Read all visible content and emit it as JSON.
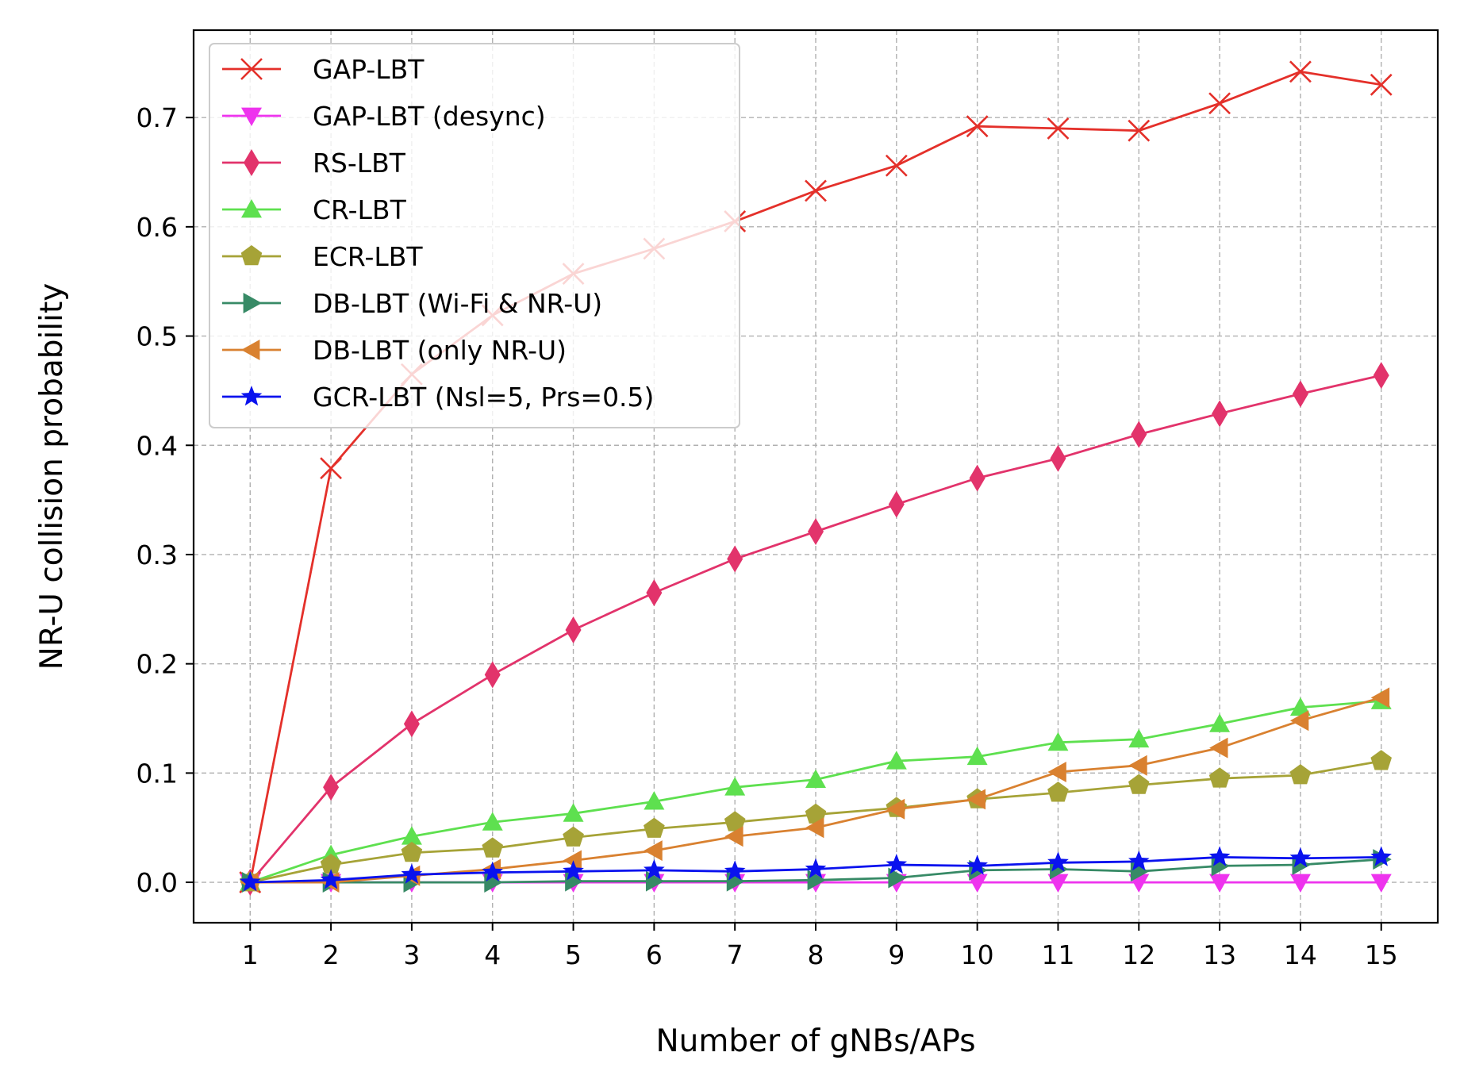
{
  "chart_data": {
    "type": "line",
    "title": "",
    "xlabel": "Number of gNBs/APs",
    "ylabel": "NR-U collision probability",
    "x": [
      1,
      2,
      3,
      4,
      5,
      6,
      7,
      8,
      9,
      10,
      11,
      12,
      13,
      14,
      15
    ],
    "x_ticks": [
      "1",
      "2",
      "3",
      "4",
      "5",
      "6",
      "7",
      "8",
      "9",
      "10",
      "11",
      "12",
      "13",
      "14",
      "15"
    ],
    "xlim": [
      0.3,
      15.7
    ],
    "ylim": [
      -0.037,
      0.78
    ],
    "y_ticks": [
      0.0,
      0.1,
      0.2,
      0.3,
      0.4,
      0.5,
      0.6,
      0.7
    ],
    "y_tick_labels": [
      "0.0",
      "0.1",
      "0.2",
      "0.3",
      "0.4",
      "0.5",
      "0.6",
      "0.7"
    ],
    "grid": true,
    "legend_position": "top-left",
    "series": [
      {
        "name": "GAP-LBT",
        "color": "#e4302a",
        "marker": "x",
        "values": [
          0.0,
          0.379,
          0.465,
          0.519,
          0.557,
          0.58,
          0.605,
          0.633,
          0.656,
          0.692,
          0.69,
          0.688,
          0.713,
          0.742,
          0.73
        ]
      },
      {
        "name": "GAP-LBT (desync)",
        "color": "#ee33ee",
        "marker": "triangle-down",
        "values": [
          0.0,
          0.0,
          0.0,
          0.0,
          0.0,
          0.0,
          0.0,
          0.0,
          0.0,
          0.0,
          0.0,
          0.0,
          0.0,
          0.0,
          0.0
        ]
      },
      {
        "name": "RS-LBT",
        "color": "#e2336b",
        "marker": "thin-diamond",
        "values": [
          0.0,
          0.087,
          0.145,
          0.19,
          0.231,
          0.265,
          0.296,
          0.321,
          0.346,
          0.37,
          0.388,
          0.41,
          0.429,
          0.447,
          0.464
        ]
      },
      {
        "name": "CR-LBT",
        "color": "#5ee04f",
        "marker": "triangle-up",
        "values": [
          0.0,
          0.025,
          0.042,
          0.055,
          0.063,
          0.074,
          0.087,
          0.094,
          0.111,
          0.115,
          0.128,
          0.131,
          0.145,
          0.16,
          0.166
        ]
      },
      {
        "name": "ECR-LBT",
        "color": "#a6a337",
        "marker": "pentagon",
        "values": [
          0.0,
          0.016,
          0.027,
          0.031,
          0.041,
          0.049,
          0.055,
          0.062,
          0.068,
          0.076,
          0.082,
          0.089,
          0.095,
          0.098,
          0.111
        ]
      },
      {
        "name": "DB-LBT (Wi-Fi & NR-U)",
        "color": "#378a66",
        "marker": "triangle-right",
        "values": [
          0.0,
          0.0,
          0.0,
          0.0,
          0.001,
          0.001,
          0.001,
          0.002,
          0.004,
          0.011,
          0.012,
          0.01,
          0.015,
          0.016,
          0.021
        ]
      },
      {
        "name": "DB-LBT (only NR-U)",
        "color": "#d98130",
        "marker": "triangle-left",
        "values": [
          0.0,
          0.0,
          0.006,
          0.012,
          0.02,
          0.029,
          0.042,
          0.05,
          0.067,
          0.076,
          0.101,
          0.107,
          0.123,
          0.148,
          0.169
        ]
      },
      {
        "name": "GCR-LBT (Nsl=5, Prs=0.5)",
        "color": "#0a12ee",
        "marker": "star",
        "values": [
          0.0,
          0.002,
          0.007,
          0.009,
          0.01,
          0.011,
          0.01,
          0.012,
          0.016,
          0.015,
          0.018,
          0.019,
          0.023,
          0.022,
          0.023
        ]
      }
    ]
  }
}
